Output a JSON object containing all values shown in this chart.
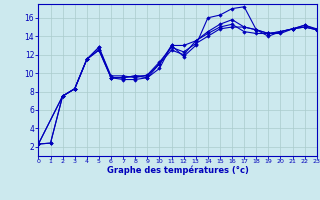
{
  "background_color": "#cce9ee",
  "grid_color": "#aacccc",
  "line_color": "#0000bb",
  "marker_color": "#0000bb",
  "xlabel": "Graphe des températures (°c)",
  "xlabel_color": "#0000bb",
  "tick_color": "#0000bb",
  "axis_color": "#0000bb",
  "xmin": 0,
  "xmax": 23,
  "ymin": 1,
  "ymax": 17.5,
  "yticks": [
    2,
    4,
    6,
    8,
    10,
    12,
    14,
    16
  ],
  "xticks": [
    0,
    1,
    2,
    3,
    4,
    5,
    6,
    7,
    8,
    9,
    10,
    11,
    12,
    13,
    14,
    15,
    16,
    17,
    18,
    19,
    20,
    21,
    22,
    23
  ],
  "series": [
    {
      "x": [
        0,
        1,
        2,
        3,
        4,
        5,
        6,
        7,
        8,
        9,
        10,
        11,
        12,
        13,
        14,
        15,
        16,
        17,
        18,
        19,
        20,
        21,
        22,
        23
      ],
      "y": [
        2.3,
        2.4,
        7.5,
        8.3,
        11.5,
        12.5,
        9.5,
        9.3,
        9.3,
        9.5,
        10.5,
        13.0,
        11.8,
        13.0,
        16.0,
        16.3,
        17.0,
        17.2,
        14.7,
        14.3,
        14.3,
        14.8,
        15.2,
        14.8
      ]
    },
    {
      "x": [
        0,
        1,
        2,
        3,
        4,
        5,
        6,
        7,
        8,
        9,
        10,
        11,
        12,
        13,
        14,
        15,
        16,
        17,
        18,
        19,
        20,
        21,
        22,
        23
      ],
      "y": [
        2.3,
        2.4,
        7.5,
        8.3,
        11.5,
        12.5,
        9.5,
        9.5,
        9.7,
        9.5,
        11.0,
        13.0,
        13.0,
        13.5,
        14.3,
        15.0,
        15.3,
        14.5,
        14.3,
        14.3,
        14.5,
        14.8,
        15.0,
        14.7
      ]
    },
    {
      "x": [
        0,
        2,
        3,
        4,
        5,
        6,
        7,
        8,
        9,
        10,
        11,
        12,
        13,
        14,
        15,
        16,
        17,
        18,
        19,
        20,
        21,
        22,
        23
      ],
      "y": [
        2.3,
        7.5,
        8.3,
        11.5,
        12.8,
        9.5,
        9.5,
        9.7,
        9.7,
        11.0,
        12.5,
        12.0,
        13.5,
        14.5,
        15.3,
        15.8,
        15.0,
        14.7,
        14.3,
        14.5,
        14.8,
        15.0,
        14.7
      ]
    },
    {
      "x": [
        0,
        2,
        3,
        4,
        5,
        6,
        7,
        8,
        9,
        10,
        11,
        12,
        13,
        14,
        15,
        16,
        17,
        18,
        19,
        20,
        21,
        22,
        23
      ],
      "y": [
        2.3,
        7.5,
        8.3,
        11.5,
        12.8,
        9.7,
        9.7,
        9.5,
        9.8,
        11.2,
        12.8,
        12.3,
        13.2,
        14.0,
        14.8,
        15.0,
        15.0,
        14.7,
        14.0,
        14.5,
        14.8,
        15.2,
        14.7
      ]
    }
  ]
}
